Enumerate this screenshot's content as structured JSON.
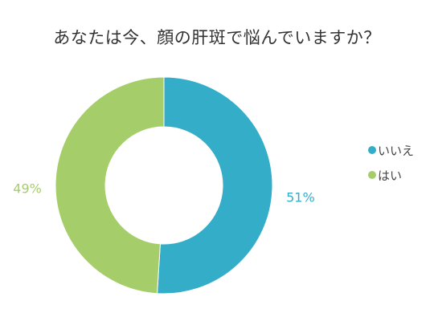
{
  "chart_data": {
    "type": "pie",
    "variant": "donut",
    "title": "あなたは今、顔の肝斑で悩んでいますか？",
    "categories": [
      "いいえ",
      "はい"
    ],
    "values": [
      51,
      49
    ],
    "value_labels": [
      "51%",
      "49%"
    ],
    "colors": [
      "#34adc9",
      "#a5ce6a"
    ],
    "legend_position": "right"
  }
}
